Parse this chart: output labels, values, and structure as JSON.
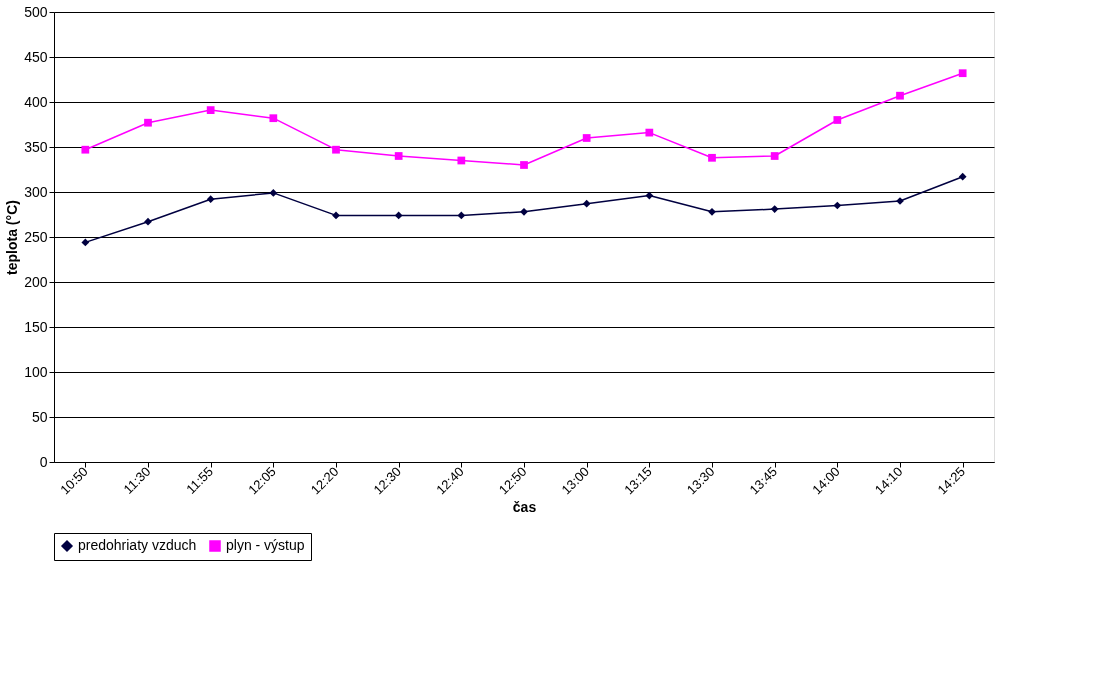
{
  "chart_data": {
    "type": "line",
    "xlabel": "čas",
    "ylabel": "teplota (°C)",
    "categories": [
      "10:50",
      "11:30",
      "11:55",
      "12:05",
      "12:20",
      "12:30",
      "12:40",
      "12:50",
      "13:00",
      "13:15",
      "13:30",
      "13:45",
      "14:00",
      "14:10",
      "14:25"
    ],
    "series": [
      {
        "name": "predohriaty vzduch",
        "color": "#000040",
        "marker": "diamond",
        "values": [
          244,
          267,
          292,
          299,
          274,
          274,
          274,
          278,
          287,
          296,
          278,
          281,
          285,
          290,
          317
        ]
      },
      {
        "name": "plyn - výstup",
        "color": "#ff00ff",
        "marker": "square",
        "values": [
          347,
          377,
          391,
          382,
          347,
          340,
          335,
          330,
          360,
          366,
          338,
          340,
          380,
          407,
          432
        ]
      }
    ],
    "ylim": [
      0,
      500
    ],
    "yticks": [
      0,
      50,
      100,
      150,
      200,
      250,
      300,
      350,
      400,
      450,
      500
    ],
    "grid": "y",
    "legend": "bottom",
    "line_style": "solid"
  }
}
